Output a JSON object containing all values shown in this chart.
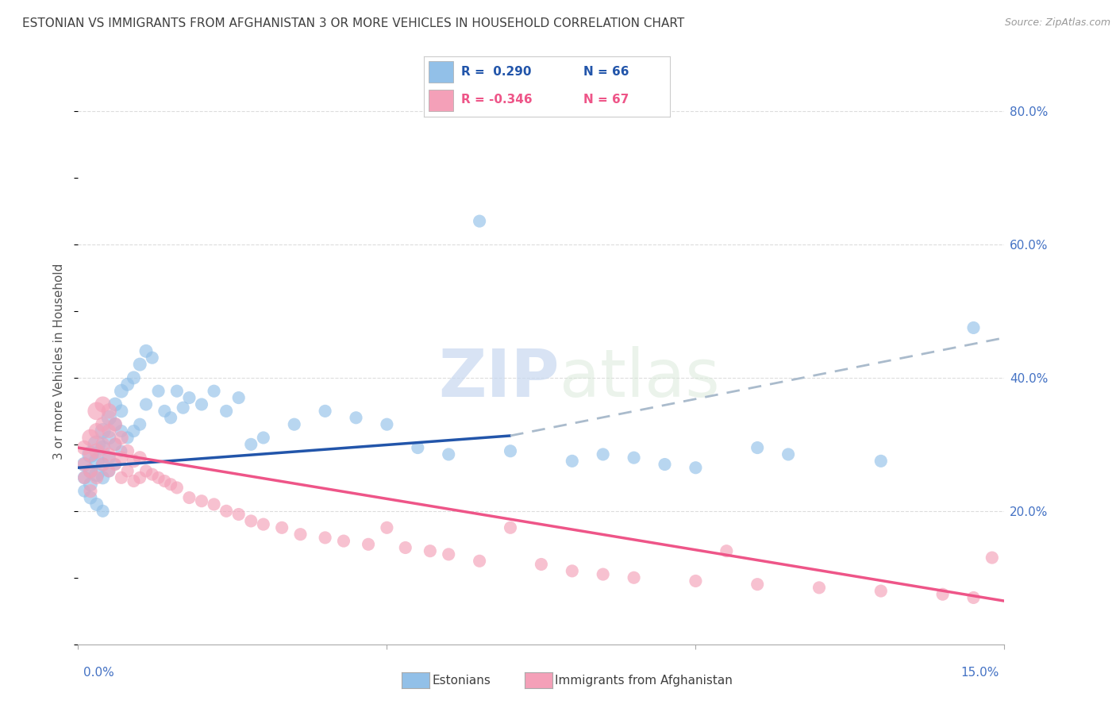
{
  "title": "ESTONIAN VS IMMIGRANTS FROM AFGHANISTAN 3 OR MORE VEHICLES IN HOUSEHOLD CORRELATION CHART",
  "source": "Source: ZipAtlas.com",
  "ylabel": "3 or more Vehicles in Household",
  "xlim": [
    0.0,
    0.15
  ],
  "ylim": [
    0.0,
    0.85
  ],
  "yticks": [
    0.2,
    0.4,
    0.6,
    0.8
  ],
  "ytick_labels": [
    "20.0%",
    "40.0%",
    "60.0%",
    "80.0%"
  ],
  "xtick_positions": [
    0.0,
    0.05,
    0.1,
    0.15
  ],
  "watermark_zip": "ZIP",
  "watermark_atlas": "atlas",
  "estonian_color": "#92C0E8",
  "afghan_color": "#F4A0B8",
  "trend_estonian_color": "#2255AA",
  "trend_estonian_dash_color": "#AABBCC",
  "trend_afghan_color": "#EE5588",
  "background_color": "#FFFFFF",
  "grid_color": "#DDDDDD",
  "title_color": "#404040",
  "estonian_x": [
    0.001,
    0.001,
    0.001,
    0.002,
    0.002,
    0.002,
    0.002,
    0.003,
    0.003,
    0.003,
    0.003,
    0.004,
    0.004,
    0.004,
    0.004,
    0.004,
    0.005,
    0.005,
    0.005,
    0.005,
    0.006,
    0.006,
    0.006,
    0.006,
    0.007,
    0.007,
    0.007,
    0.007,
    0.008,
    0.008,
    0.009,
    0.009,
    0.01,
    0.01,
    0.011,
    0.011,
    0.012,
    0.013,
    0.014,
    0.015,
    0.016,
    0.017,
    0.018,
    0.02,
    0.022,
    0.024,
    0.026,
    0.028,
    0.03,
    0.035,
    0.04,
    0.045,
    0.05,
    0.055,
    0.06,
    0.065,
    0.07,
    0.08,
    0.085,
    0.09,
    0.095,
    0.1,
    0.11,
    0.115,
    0.13,
    0.145
  ],
  "estonian_y": [
    0.27,
    0.25,
    0.23,
    0.285,
    0.26,
    0.24,
    0.22,
    0.3,
    0.275,
    0.255,
    0.21,
    0.32,
    0.295,
    0.27,
    0.25,
    0.2,
    0.34,
    0.31,
    0.28,
    0.26,
    0.36,
    0.33,
    0.3,
    0.27,
    0.38,
    0.35,
    0.32,
    0.29,
    0.39,
    0.31,
    0.4,
    0.32,
    0.42,
    0.33,
    0.44,
    0.36,
    0.43,
    0.38,
    0.35,
    0.34,
    0.38,
    0.355,
    0.37,
    0.36,
    0.38,
    0.35,
    0.37,
    0.3,
    0.31,
    0.33,
    0.35,
    0.34,
    0.33,
    0.295,
    0.285,
    0.635,
    0.29,
    0.275,
    0.285,
    0.28,
    0.27,
    0.265,
    0.295,
    0.285,
    0.275,
    0.475
  ],
  "estonian_size": [
    60,
    50,
    45,
    80,
    60,
    55,
    50,
    90,
    70,
    65,
    50,
    70,
    60,
    55,
    50,
    45,
    65,
    55,
    50,
    45,
    55,
    50,
    45,
    40,
    55,
    50,
    45,
    40,
    50,
    45,
    50,
    45,
    50,
    45,
    50,
    45,
    45,
    45,
    45,
    45,
    45,
    45,
    45,
    45,
    45,
    45,
    45,
    45,
    45,
    45,
    45,
    45,
    45,
    45,
    45,
    45,
    45,
    45,
    45,
    45,
    45,
    45,
    45,
    45,
    45,
    45
  ],
  "afghan_x": [
    0.001,
    0.001,
    0.001,
    0.002,
    0.002,
    0.002,
    0.002,
    0.003,
    0.003,
    0.003,
    0.003,
    0.004,
    0.004,
    0.004,
    0.004,
    0.005,
    0.005,
    0.005,
    0.005,
    0.006,
    0.006,
    0.006,
    0.007,
    0.007,
    0.007,
    0.008,
    0.008,
    0.009,
    0.009,
    0.01,
    0.01,
    0.011,
    0.012,
    0.013,
    0.014,
    0.015,
    0.016,
    0.018,
    0.02,
    0.022,
    0.024,
    0.026,
    0.028,
    0.03,
    0.033,
    0.036,
    0.04,
    0.043,
    0.047,
    0.05,
    0.053,
    0.057,
    0.06,
    0.065,
    0.07,
    0.075,
    0.08,
    0.085,
    0.09,
    0.1,
    0.105,
    0.11,
    0.12,
    0.13,
    0.14,
    0.145,
    0.148
  ],
  "afghan_y": [
    0.295,
    0.27,
    0.25,
    0.31,
    0.285,
    0.26,
    0.23,
    0.35,
    0.32,
    0.29,
    0.25,
    0.36,
    0.33,
    0.3,
    0.27,
    0.35,
    0.32,
    0.285,
    0.26,
    0.33,
    0.3,
    0.27,
    0.31,
    0.28,
    0.25,
    0.29,
    0.26,
    0.275,
    0.245,
    0.28,
    0.25,
    0.26,
    0.255,
    0.25,
    0.245,
    0.24,
    0.235,
    0.22,
    0.215,
    0.21,
    0.2,
    0.195,
    0.185,
    0.18,
    0.175,
    0.165,
    0.16,
    0.155,
    0.15,
    0.175,
    0.145,
    0.14,
    0.135,
    0.125,
    0.175,
    0.12,
    0.11,
    0.105,
    0.1,
    0.095,
    0.14,
    0.09,
    0.085,
    0.08,
    0.075,
    0.07,
    0.13
  ],
  "afghan_size": [
    60,
    50,
    45,
    80,
    60,
    55,
    50,
    90,
    70,
    65,
    50,
    70,
    60,
    55,
    50,
    65,
    55,
    50,
    45,
    55,
    50,
    45,
    55,
    50,
    45,
    50,
    45,
    50,
    45,
    50,
    45,
    45,
    45,
    45,
    45,
    45,
    45,
    45,
    45,
    45,
    45,
    45,
    45,
    45,
    45,
    45,
    45,
    45,
    45,
    45,
    45,
    45,
    45,
    45,
    45,
    45,
    45,
    45,
    45,
    45,
    45,
    45,
    45,
    45,
    45,
    45,
    45
  ],
  "trend_e_x0": 0.0,
  "trend_e_x1": 0.15,
  "trend_e_y0": 0.265,
  "trend_e_y1": 0.355,
  "trend_e_dash_x0": 0.07,
  "trend_e_dash_x1": 0.15,
  "trend_e_dash_y0": 0.313,
  "trend_e_dash_y1": 0.46,
  "trend_a_x0": 0.0,
  "trend_a_x1": 0.15,
  "trend_a_y0": 0.295,
  "trend_a_y1": 0.065
}
